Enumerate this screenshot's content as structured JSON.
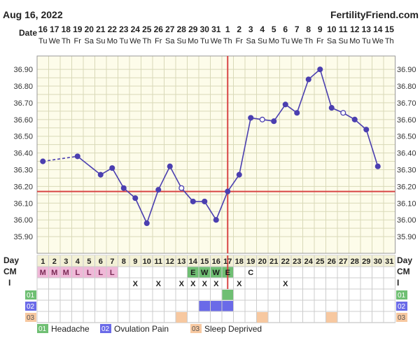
{
  "header": {
    "date_text": "Aug 16, 2022",
    "brand": "FertilityFriend.com"
  },
  "labels": {
    "date": "Date",
    "day": "Day",
    "cm": "CM",
    "i": "I",
    "row1": "01",
    "row2": "02",
    "row3": "03"
  },
  "legend": [
    {
      "code": "01",
      "label": "Headache",
      "color": "#6fbf73"
    },
    {
      "code": "02",
      "label": "Ovulation Pain",
      "color": "#6a6ae8"
    },
    {
      "code": "03",
      "label": "Sleep Deprived",
      "color": "#f7c8a0"
    }
  ],
  "colors": {
    "line": "#4b3fb0",
    "coverline": "#d84545",
    "grid": "#d9d9b8",
    "plot_bg": "#fdfcea",
    "cm_pink": "#f0b8d8",
    "cm_green": "#6fbf73",
    "headache": "#6fbf73",
    "ovulation_pain": "#6a6ae8",
    "sleep": "#f7c8a0",
    "row_label_green": "#6fbf73",
    "row_label_blue": "#6a6ae8",
    "row_label_orange": "#f7c8a0"
  },
  "chart_data": {
    "type": "line",
    "ylim": [
      35.8,
      36.98
    ],
    "yticks": [
      "36.90",
      "36.80",
      "36.70",
      "36.60",
      "36.50",
      "36.40",
      "36.30",
      "36.20",
      "36.10",
      "36.00",
      "35.90"
    ],
    "dates": [
      "16",
      "17",
      "18",
      "19",
      "20",
      "21",
      "22",
      "23",
      "24",
      "25",
      "26",
      "27",
      "28",
      "29",
      "30",
      "31",
      "1",
      "2",
      "3",
      "4",
      "5",
      "6",
      "7",
      "8",
      "9",
      "10",
      "11",
      "12",
      "13",
      "14",
      "15"
    ],
    "weekdays": [
      "Tu",
      "We",
      "Th",
      "Fr",
      "Sa",
      "Su",
      "Mo",
      "Tu",
      "We",
      "Th",
      "Fr",
      "Sa",
      "Su",
      "Mo",
      "Tu",
      "We",
      "Th",
      "Fr",
      "Sa",
      "Su",
      "Mo",
      "Tu",
      "We",
      "Th",
      "Fr",
      "Sa",
      "Su",
      "Mo",
      "Tu",
      "We",
      "Th"
    ],
    "days": [
      "1",
      "2",
      "3",
      "4",
      "5",
      "6",
      "7",
      "8",
      "9",
      "10",
      "11",
      "12",
      "13",
      "14",
      "15",
      "16",
      "17",
      "18",
      "19",
      "20",
      "21",
      "22",
      "23",
      "24",
      "25",
      "26",
      "27",
      "28",
      "29",
      "30",
      "31"
    ],
    "temps": [
      36.35,
      null,
      null,
      36.38,
      null,
      36.27,
      36.31,
      36.19,
      36.13,
      35.98,
      36.18,
      36.32,
      36.19,
      36.11,
      36.11,
      36.0,
      36.17,
      36.27,
      36.61,
      36.6,
      36.59,
      36.69,
      36.64,
      36.84,
      36.9,
      36.67,
      36.64,
      36.6,
      36.54,
      36.32
    ],
    "open_points_days": [
      13,
      20,
      27
    ],
    "dashed_segments": [
      [
        1,
        4
      ],
      [
        4,
        7
      ]
    ],
    "coverline": 36.17,
    "ovulation_day": 17,
    "cm": [
      "M",
      "M",
      "M",
      "L",
      "L",
      "L",
      "L",
      "",
      "",
      "",
      "",
      "",
      "",
      "E",
      "W",
      "W",
      "E",
      "",
      "C",
      "",
      "",
      "",
      "",
      "",
      "",
      "",
      "",
      "",
      "",
      "",
      ""
    ],
    "intercourse": [
      "",
      "",
      "",
      "",
      "",
      "",
      "",
      "",
      "X",
      "",
      "X",
      "",
      "X",
      "X",
      "X",
      "X",
      "",
      "X",
      "",
      "",
      "",
      "X",
      "",
      "",
      "",
      "",
      "",
      "",
      "",
      "",
      ""
    ],
    "headache_days": [
      17
    ],
    "ovulation_pain_days": [
      15,
      16,
      17
    ],
    "sleep_deprived_days": [
      13,
      20,
      26
    ]
  }
}
